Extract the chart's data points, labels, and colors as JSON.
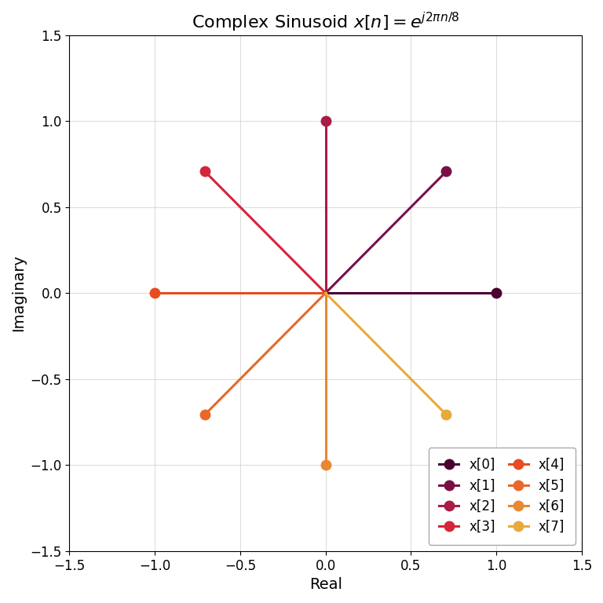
{
  "N": 8,
  "title": "Complex Sinusoid $x[n] = e^{j2\\pi n/8}$",
  "xlabel": "Real",
  "ylabel": "Imaginary",
  "xlim": [
    -1.5,
    1.5
  ],
  "ylim": [
    -1.5,
    1.5
  ],
  "xticks": [
    -1.5,
    -1.0,
    -0.5,
    0.0,
    0.5,
    1.0,
    1.5
  ],
  "yticks": [
    -1.5,
    -1.0,
    -0.5,
    0.0,
    0.5,
    1.0,
    1.5
  ],
  "colors": [
    "#4a0030",
    "#7a0f45",
    "#a81c45",
    "#d4253a",
    "#e84c20",
    "#e86828",
    "#e88830",
    "#e8aa38"
  ],
  "background": "#ffffff",
  "grid": true,
  "title_fontsize": 16,
  "label_fontsize": 14,
  "tick_fontsize": 12,
  "linewidth": 2.2,
  "markersize": 9,
  "legend_fontsize": 12
}
